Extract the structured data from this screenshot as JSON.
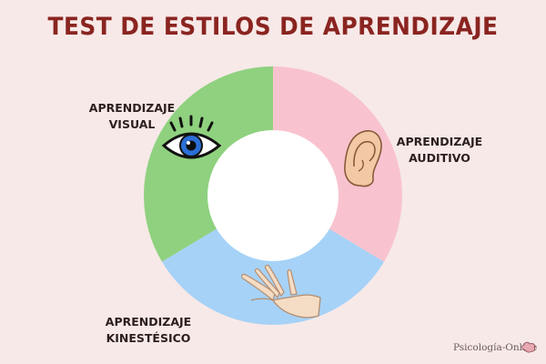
{
  "title": "TEST DE ESTILOS DE APRENDIZAJE",
  "segments": [
    {
      "line1": "APRENDIZAJE",
      "line2": "VISUAL",
      "color": "#8fd17f",
      "icon": "eye-icon"
    },
    {
      "line1": "APRENDIZAJE",
      "line2": "AUDITIVO",
      "color": "#f8c3cf",
      "icon": "ear-icon"
    },
    {
      "line1": "APRENDIZAJE",
      "line2": "KINESTÉSICO",
      "color": "#a6d2f7",
      "icon": "hand-icon"
    }
  ],
  "brand": "Psicología-Online",
  "colors": {
    "background": "#f7e9e8",
    "title": "#8a2420",
    "text": "#2b1f1d"
  }
}
